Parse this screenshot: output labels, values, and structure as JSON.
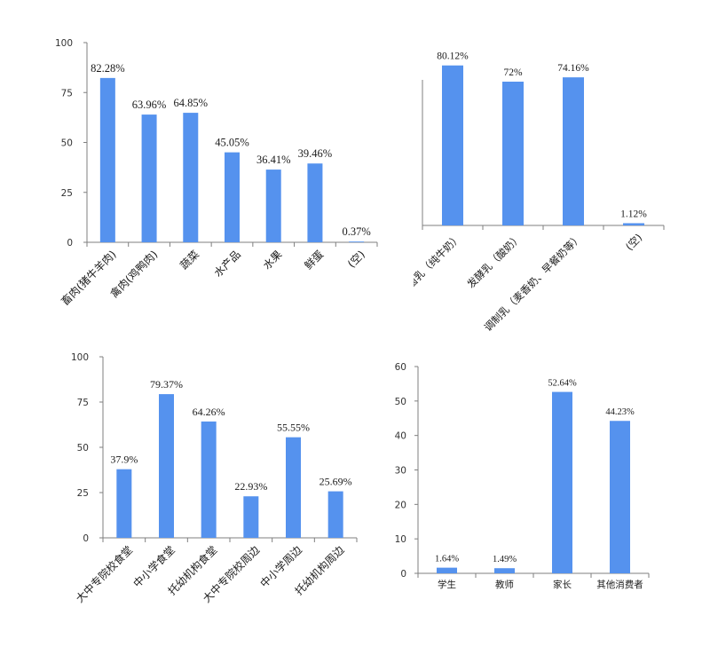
{
  "colors": {
    "bar": "#5592EE",
    "axis": "#7f7f7f",
    "text": "#1a1a1a"
  },
  "chart_data": [
    {
      "type": "bar",
      "categories": [
        "畜肉(猪牛羊肉)",
        "禽肉(鸡鸭肉)",
        "蔬菜",
        "水产品",
        "水果",
        "鲜蛋",
        "(空)"
      ],
      "values": [
        82.28,
        63.96,
        64.85,
        45.05,
        36.41,
        39.46,
        0.37
      ],
      "value_labels": [
        "82.28%",
        "63.96%",
        "64.85%",
        "45.05%",
        "36.41%",
        "39.46%",
        "0.37%"
      ],
      "ylim": [
        0,
        100
      ],
      "yticks": [
        "0",
        "25",
        "50",
        "75",
        "100"
      ],
      "y_axis": true,
      "rotated_labels": true
    },
    {
      "type": "bar",
      "categories": [
        "灭菌乳（纯牛奶）",
        "发酵乳（酸奶）",
        "调制乳（麦香奶、早餐奶等）",
        "(空)"
      ],
      "values": [
        80.12,
        72,
        74.16,
        1.12
      ],
      "value_labels": [
        "80.12%",
        "72%",
        "74.16%",
        "1.12%"
      ],
      "ylim": [
        0,
        100
      ],
      "yticks": [],
      "y_axis": false,
      "rotated_labels": true
    },
    {
      "type": "bar",
      "categories": [
        "大中专院校食堂",
        "中小学食堂",
        "托幼机构食堂",
        "大中专院校周边",
        "中小学周边",
        "托幼机构周边"
      ],
      "values": [
        37.9,
        79.37,
        64.26,
        22.93,
        55.55,
        25.69
      ],
      "value_labels": [
        "37.9%",
        "79.37%",
        "64.26%",
        "22.93%",
        "55.55%",
        "25.69%"
      ],
      "ylim": [
        0,
        100
      ],
      "yticks": [
        "0",
        "25",
        "50",
        "75",
        "100"
      ],
      "y_axis": true,
      "rotated_labels": true
    },
    {
      "type": "bar",
      "categories": [
        "学生",
        "教师",
        "家长",
        "其他消费者"
      ],
      "values": [
        1.64,
        1.49,
        52.64,
        44.23
      ],
      "value_labels": [
        "1.64%",
        "1.49%",
        "52.64%",
        "44.23%"
      ],
      "ylim": [
        0,
        60
      ],
      "yticks": [
        "0",
        "10",
        "20",
        "30",
        "40",
        "50",
        "60"
      ],
      "y_axis": true,
      "rotated_labels": false
    }
  ]
}
